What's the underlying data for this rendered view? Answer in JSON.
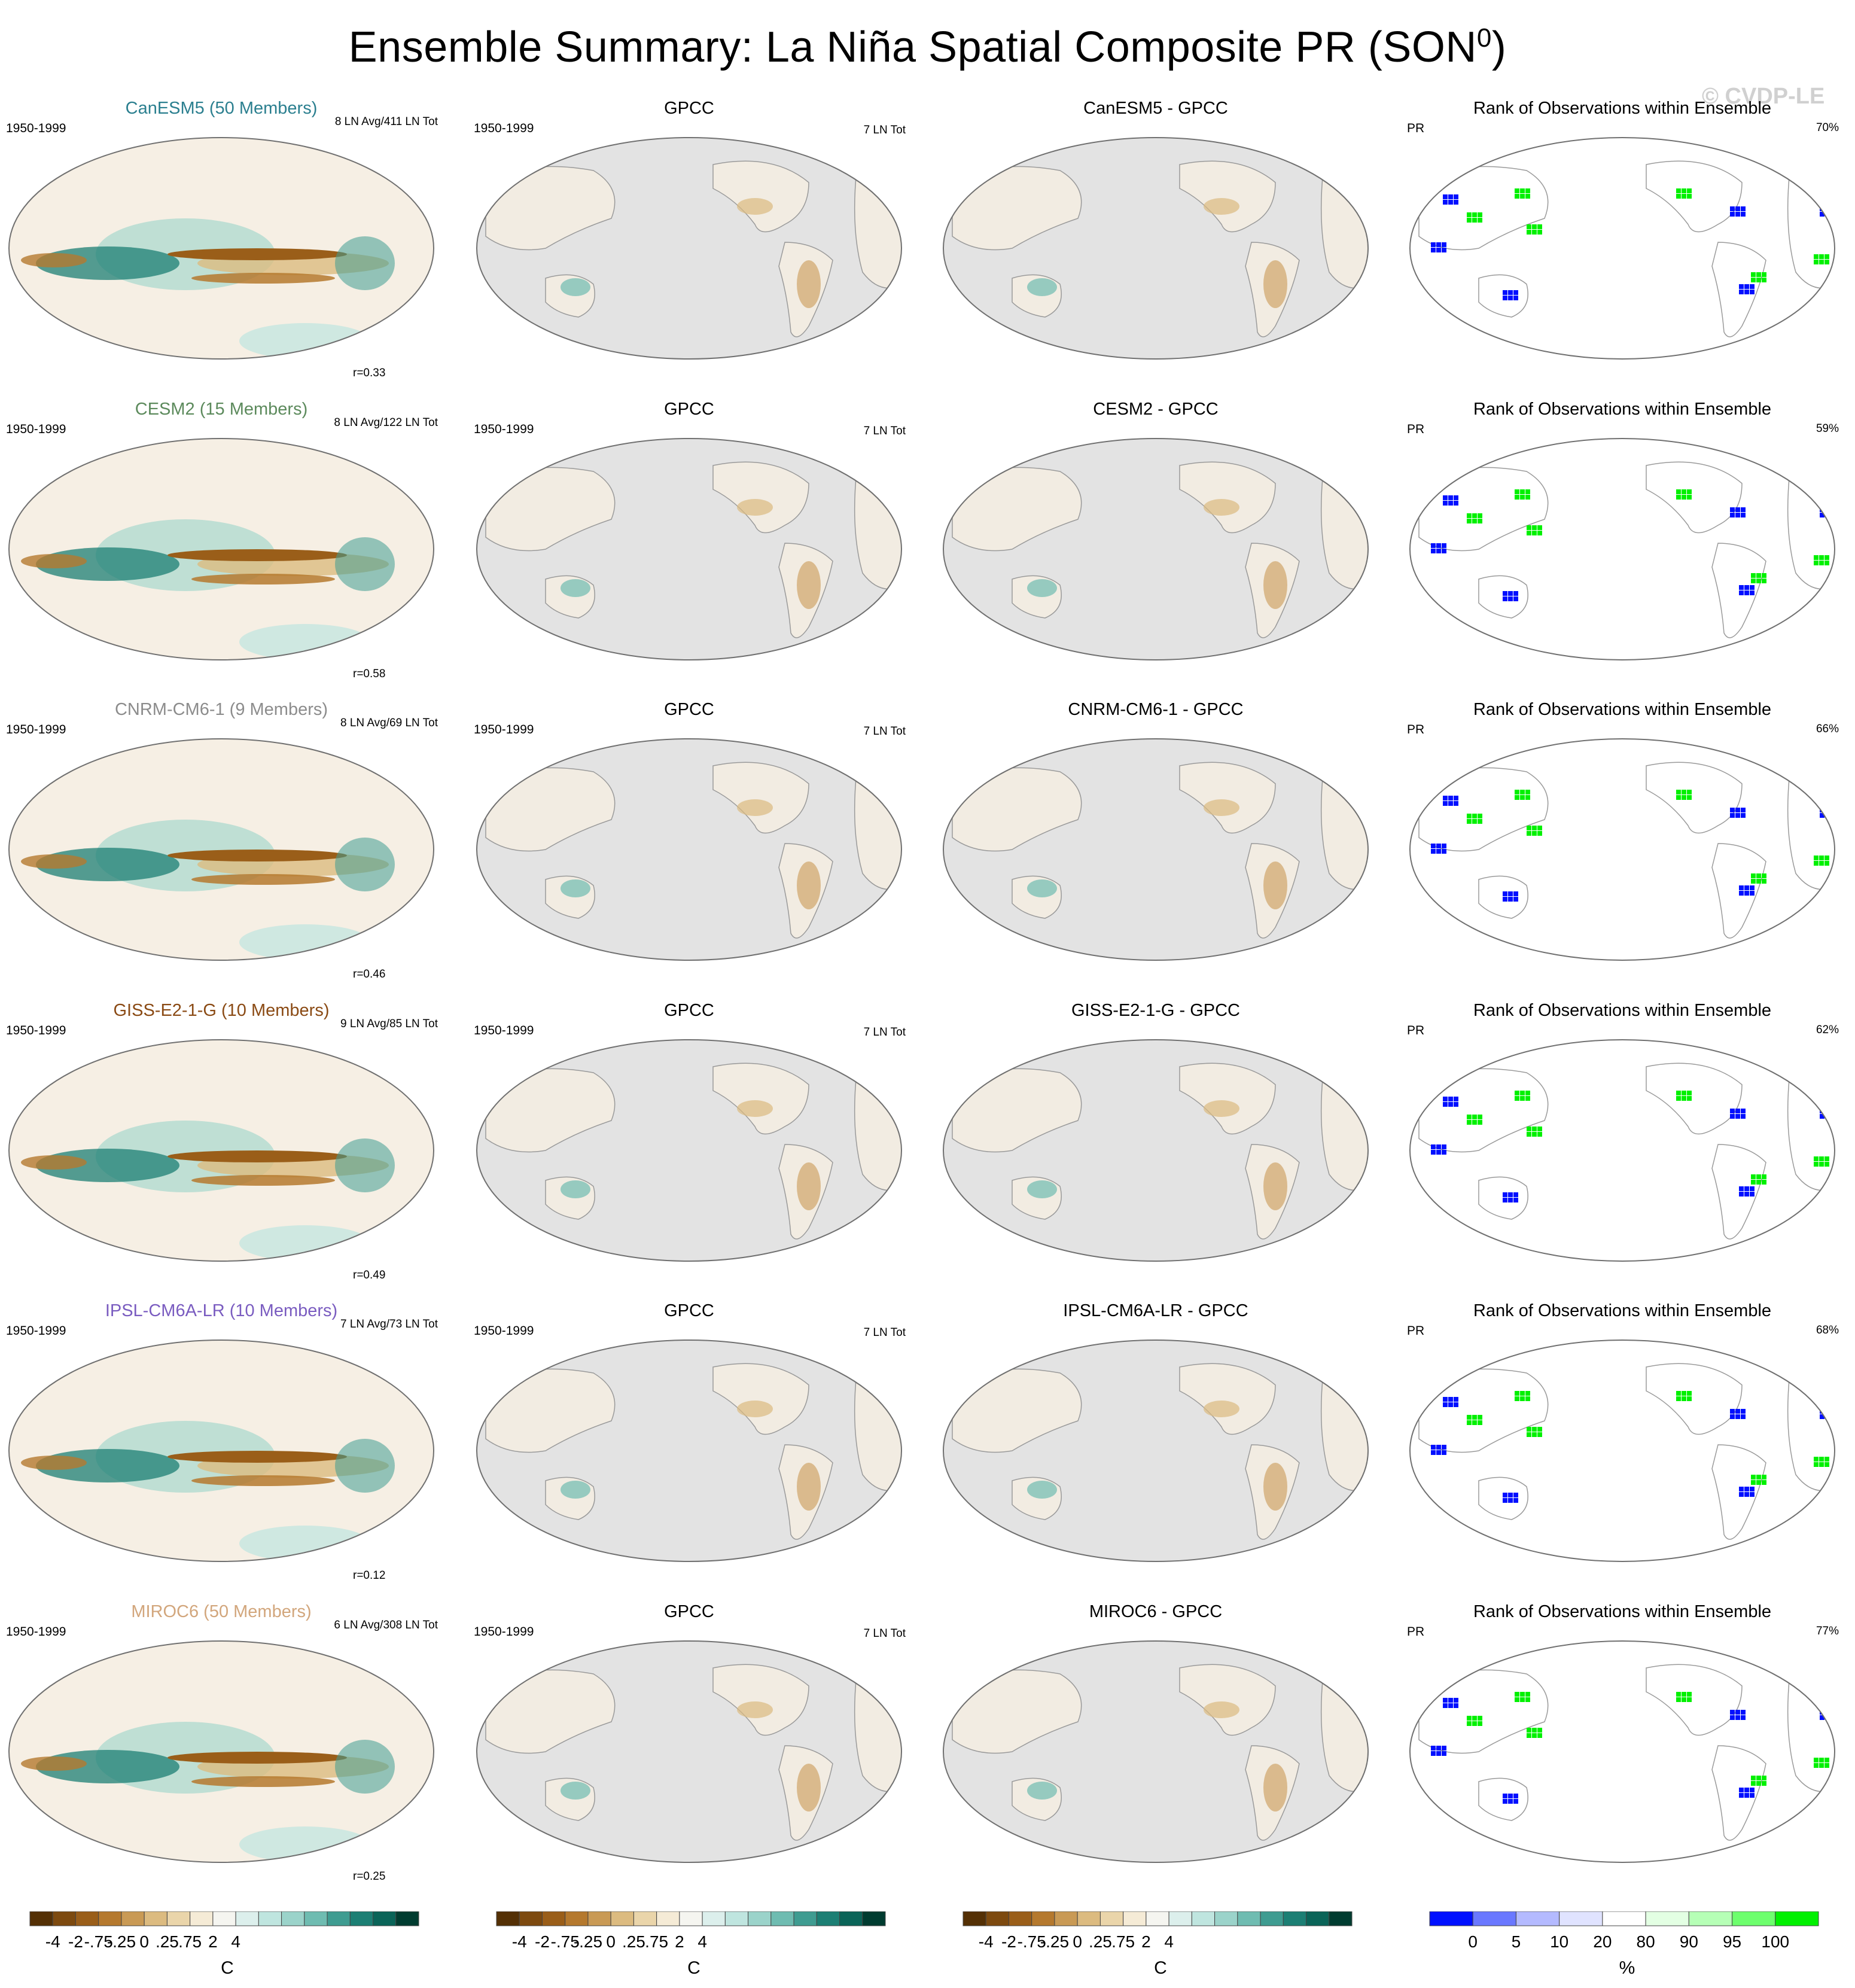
{
  "title": "Ensemble Summary: La Niña Spatial Composite PR (SON",
  "title_sup": "0",
  "title_close": ")",
  "watermark": "© CVDP-LE",
  "period": "1950-1999",
  "obs_name": "GPCC",
  "obs_count": "7 LN Tot",
  "rank_title": "Rank of Observations within Ensemble",
  "rank_var": "PR",
  "models": [
    {
      "title": "CanESM5 (50 Members)",
      "color": "#2b7f8f",
      "count": "8 LN Avg/411 LN Tot",
      "corr": "r=0.33",
      "diff_title": "CanESM5 - GPCC",
      "rank_pct": "70%"
    },
    {
      "title": "CESM2 (15 Members)",
      "color": "#5c8a5c",
      "count": "8 LN Avg/122 LN Tot",
      "corr": "r=0.58",
      "diff_title": "CESM2 - GPCC",
      "rank_pct": "59%"
    },
    {
      "title": "CNRM-CM6-1 (9 Members)",
      "color": "#8c8c8c",
      "count": "8 LN Avg/69 LN Tot",
      "corr": "r=0.46",
      "diff_title": "CNRM-CM6-1 - GPCC",
      "rank_pct": "66%"
    },
    {
      "title": "GISS-E2-1-G (10 Members)",
      "color": "#8a4a14",
      "count": "9 LN Avg/85 LN Tot",
      "corr": "r=0.49",
      "diff_title": "GISS-E2-1-G - GPCC",
      "rank_pct": "62%"
    },
    {
      "title": "IPSL-CM6A-LR (10 Members)",
      "color": "#7a5cc0",
      "count": "7 LN Avg/73 LN Tot",
      "corr": "r=0.12",
      "diff_title": "IPSL-CM6A-LR - GPCC",
      "rank_pct": "68%"
    },
    {
      "title": "MIROC6 (50 Members)",
      "color": "#d2a67c",
      "count": "6 LN Avg/308 LN Tot",
      "corr": "r=0.25",
      "diff_title": "MIROC6 - GPCC",
      "rank_pct": "77%"
    }
  ],
  "chart_data": {
    "type": "heatmap",
    "projection": "Robinson (Pacific-centered)",
    "layout": "6 rows x 4 columns",
    "pr_colorbar": {
      "unit": "C",
      "colors": [
        "#543005",
        "#7d4a0f",
        "#9a5e19",
        "#b5792e",
        "#c99a55",
        "#dcbb80",
        "#ead5aa",
        "#f5ebd6",
        "#f5f5f0",
        "#dcefec",
        "#bfe5df",
        "#9bd3ca",
        "#6fbcb1",
        "#3f9c91",
        "#1c7f74",
        "#0a6458",
        "#003c30"
      ],
      "tick_labels": [
        "-4",
        "-2",
        "-.75",
        "-.25",
        "0",
        ".25",
        ".75",
        "2",
        "4"
      ]
    },
    "rank_colorbar": {
      "unit": "%",
      "colors": [
        "#0010ff",
        "#6a78ff",
        "#b4baff",
        "#e0e3ff",
        "#ffffff",
        "#e3ffe3",
        "#b6ffb6",
        "#6dff6d",
        "#00f000"
      ],
      "tick_labels": [
        "0",
        "5",
        "10",
        "20",
        "80",
        "90",
        "95",
        "100"
      ]
    }
  }
}
